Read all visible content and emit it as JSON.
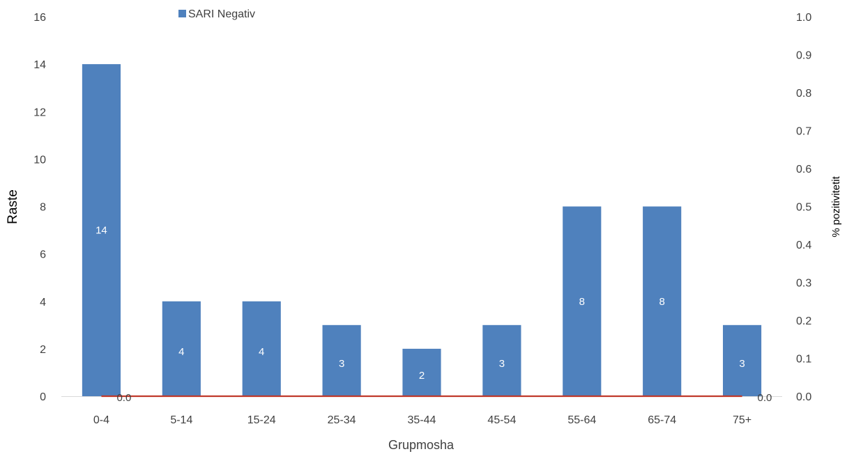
{
  "chart_data": {
    "type": "bar",
    "categories": [
      "0-4",
      "5-14",
      "15-24",
      "25-34",
      "35-44",
      "45-54",
      "55-64",
      "65-74",
      "75+"
    ],
    "series": [
      {
        "name": "SARI Negativ",
        "type": "bar",
        "axis": "left",
        "color": "#4f81bd",
        "values": [
          14,
          4,
          4,
          3,
          2,
          3,
          8,
          8,
          3
        ],
        "data_labels": [
          "14",
          "4",
          "4",
          "3",
          "2",
          "3",
          "8",
          "8",
          "3"
        ]
      },
      {
        "type": "line",
        "axis": "right",
        "color": "#c0392b",
        "values": [
          0.0,
          0.0,
          0.0,
          0.0,
          0.0,
          0.0,
          0.0,
          0.0,
          0.0
        ],
        "data_labels_first_last": [
          "0.0",
          "0.0"
        ]
      }
    ],
    "xlabel": "Grupmosha",
    "ylabel": "Raste",
    "y2label": "% pozitivitetit",
    "ylim": [
      0,
      16
    ],
    "y2lim": [
      0,
      1.0
    ],
    "yticks": [
      "0",
      "2",
      "4",
      "6",
      "8",
      "10",
      "12",
      "14",
      "16"
    ],
    "y2ticks": [
      "0.0",
      "0.1",
      "0.2",
      "0.3",
      "0.4",
      "0.5",
      "0.6",
      "0.7",
      "0.8",
      "0.9",
      "1.0"
    ],
    "legend": {
      "position": "top",
      "entries": [
        "SARI Negativ"
      ]
    },
    "grid": false
  }
}
